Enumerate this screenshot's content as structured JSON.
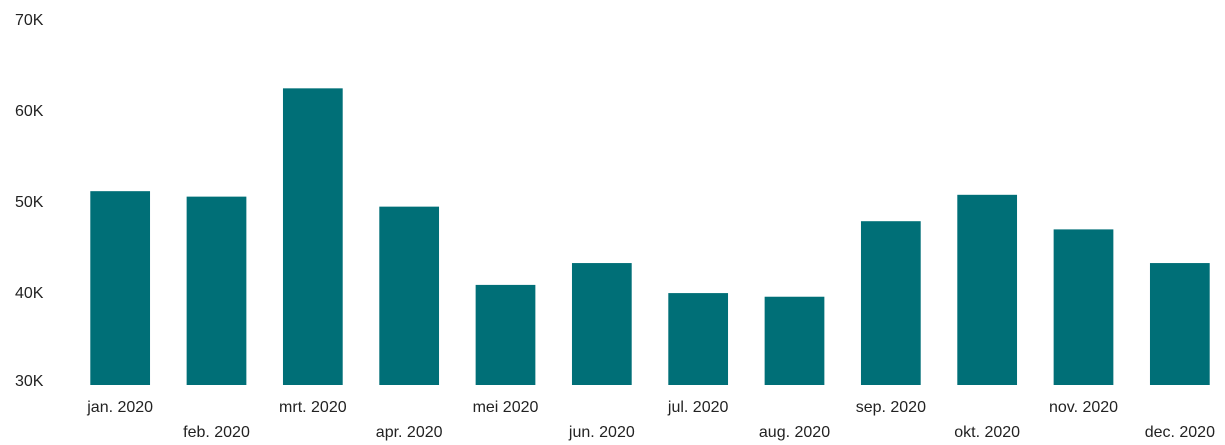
{
  "chart_data": {
    "type": "bar",
    "categories": [
      "jan. 2020",
      "feb. 2020",
      "mrt. 2020",
      "apr. 2020",
      "mei 2020",
      "jun. 2020",
      "jul. 2020",
      "aug. 2020",
      "sep. 2020",
      "okt. 2020",
      "nov. 2020",
      "dec. 2020"
    ],
    "values": [
      51300,
      50700,
      62600,
      49600,
      41000,
      43400,
      40100,
      39700,
      48000,
      50900,
      47100,
      43400
    ],
    "color": "#006f77",
    "ylim": [
      30000,
      70000
    ],
    "yticks": [
      {
        "value": 30000,
        "label": "30K"
      },
      {
        "value": 40000,
        "label": "40K"
      },
      {
        "value": 50000,
        "label": "50K"
      },
      {
        "value": 60000,
        "label": "60K"
      },
      {
        "value": 70000,
        "label": "70K"
      }
    ],
    "grid": false
  }
}
